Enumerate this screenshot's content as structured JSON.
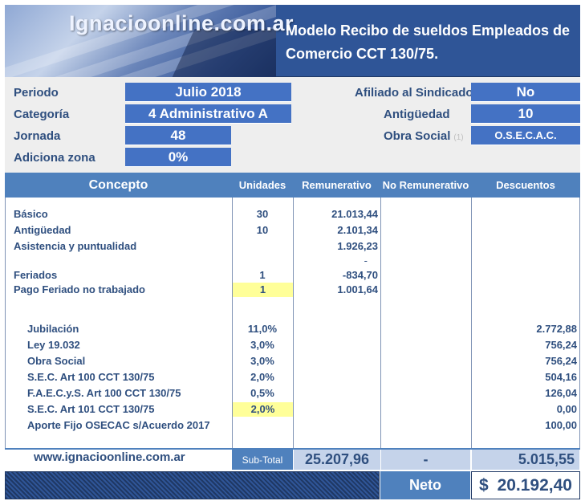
{
  "header": {
    "site_title": "Ignacioonline.com.ar",
    "title_line1": "Modelo Recibo de sueldos Empleados de",
    "title_line2": "Comercio CCT 130/75."
  },
  "info": {
    "periodo_label": "Periodo",
    "periodo_value": "Julio 2018",
    "categoria_label": "Categoría",
    "categoria_value": "4 Administrativo A",
    "jornada_label": "Jornada",
    "jornada_value": "48",
    "adiciona_zona_label": "Adiciona zona",
    "adiciona_zona_value": "0%",
    "afiliado_label": "Afiliado al Sindicado",
    "afiliado_value": "No",
    "antiguedad_label": "Antigüedad",
    "antiguedad_value": "10",
    "obra_social_label": "Obra Social",
    "obra_social_note": "(1)",
    "obra_social_value": "O.S.E.C.A.C."
  },
  "table": {
    "headers": {
      "concepto": "Concepto",
      "unidades": "Unidades",
      "remunerativo": "Remunerativo",
      "no_remunerativo": "No Remunerativo",
      "descuentos": "Descuentos"
    },
    "haberes": [
      {
        "concepto": "Básico",
        "unidades": "30",
        "remunerativo": "21.013,44",
        "no_remunerativo": "",
        "descuentos": ""
      },
      {
        "concepto": "Antigüedad",
        "unidades": "10",
        "remunerativo": "2.101,34",
        "no_remunerativo": "",
        "descuentos": ""
      },
      {
        "concepto": "Asistencia y puntualidad",
        "unidades": "",
        "remunerativo": "1.926,23",
        "no_remunerativo": "",
        "descuentos": ""
      },
      {
        "concepto": "",
        "unidades": "",
        "remunerativo": "-",
        "no_remunerativo": "",
        "descuentos": ""
      },
      {
        "concepto": "Feriados",
        "unidades": "1",
        "remunerativo": "-834,70",
        "no_remunerativo": "",
        "descuentos": ""
      },
      {
        "concepto": "Pago Feriado no trabajado",
        "unidades": "1",
        "remunerativo": "1.001,64",
        "no_remunerativo": "",
        "descuentos": ""
      }
    ],
    "descuentos": [
      {
        "concepto": "Jubilación",
        "unidades": "11,0%",
        "descuentos": "2.772,88"
      },
      {
        "concepto": "Ley 19.032",
        "unidades": "3,0%",
        "descuentos": "756,24"
      },
      {
        "concepto": "Obra Social",
        "unidades": "3,0%",
        "descuentos": "756,24"
      },
      {
        "concepto": "S.E.C. Art 100 CCT 130/75",
        "unidades": "2,0%",
        "descuentos": "504,16"
      },
      {
        "concepto": "F.A.E.C.y.S. Art 100 CCT 130/75",
        "unidades": "0,5%",
        "descuentos": "126,04"
      },
      {
        "concepto": "S.E.C. Art 101 CCT 130/75",
        "unidades": "2,0%",
        "descuentos": "0,00"
      },
      {
        "concepto": "Aporte Fijo OSECAC s/Acuerdo 2017",
        "unidades": "",
        "descuentos": "100,00"
      }
    ]
  },
  "footer": {
    "site_url": "www.ignacioonline.com.ar",
    "subtotal_label": "Sub-Total",
    "subtotal_remunerativo": "25.207,96",
    "subtotal_no_remunerativo": "-",
    "subtotal_descuentos": "5.015,55",
    "neto_label": "Neto",
    "neto_currency": "$",
    "neto_value": "20.192,40"
  },
  "colors": {
    "header_blue": "#2f5597",
    "value_blue": "#4472c4",
    "table_header": "#4f81bd",
    "text": "#2f4f7f",
    "highlight": "#ffff99"
  }
}
